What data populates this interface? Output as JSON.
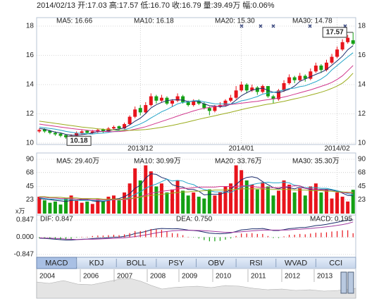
{
  "header": {
    "text": "2014/02/13 开:17.03 高:17.57 低:16.70 收:16.79 量:39.49万 幅:0.06%"
  },
  "chart_data": [
    {
      "type": "candlestick",
      "categories": [
        null,
        null,
        null,
        null,
        null,
        null,
        null,
        null,
        null,
        null,
        null,
        null,
        null,
        null,
        null,
        null,
        null,
        null,
        null,
        "2013/12",
        null,
        null,
        null,
        null,
        null,
        null,
        null,
        null,
        null,
        null,
        null,
        null,
        null,
        null,
        null,
        null,
        null,
        null,
        "2014/01",
        null,
        null,
        null,
        null,
        null,
        null,
        null,
        null,
        null,
        null,
        null,
        null,
        null,
        null,
        null,
        null,
        null,
        "2014/02",
        null,
        null,
        null
      ],
      "open": [
        10.8,
        10.95,
        10.85,
        10.7,
        10.65,
        10.55,
        10.35,
        10.5,
        10.7,
        10.85,
        10.7,
        10.8,
        10.95,
        10.8,
        11.0,
        11.15,
        11.0,
        11.3,
        11.8,
        12.4,
        12.1,
        12.6,
        13.2,
        12.9,
        13.1,
        12.7,
        12.9,
        13.2,
        12.8,
        12.6,
        12.9,
        12.7,
        12.4,
        12.2,
        12.5,
        12.6,
        12.9,
        13.1,
        13.6,
        14.0,
        13.6,
        13.8,
        13.5,
        13.9,
        13.2,
        13.0,
        13.6,
        14.1,
        14.5,
        14.3,
        14.6,
        14.4,
        14.9,
        15.3,
        15.0,
        15.5,
        15.9,
        16.4,
        16.9,
        17.03
      ],
      "high": [
        11.0,
        11.0,
        10.9,
        10.8,
        10.7,
        10.6,
        10.6,
        10.8,
        10.9,
        10.9,
        10.9,
        11.0,
        11.0,
        11.1,
        11.2,
        11.2,
        11.4,
        11.9,
        12.5,
        12.6,
        12.8,
        13.4,
        13.3,
        13.3,
        13.2,
        13.0,
        13.4,
        13.3,
        12.9,
        13.0,
        13.0,
        12.8,
        12.5,
        12.6,
        12.8,
        13.0,
        13.3,
        13.9,
        14.2,
        14.1,
        14.0,
        13.9,
        14.0,
        13.9,
        13.3,
        13.7,
        14.3,
        14.7,
        14.6,
        14.8,
        14.7,
        15.1,
        15.5,
        15.4,
        15.7,
        16.1,
        16.6,
        17.1,
        17.4,
        17.57
      ],
      "low": [
        10.7,
        10.7,
        10.6,
        10.5,
        10.4,
        10.3,
        10.18,
        10.45,
        10.6,
        10.6,
        10.6,
        10.7,
        10.7,
        10.75,
        10.9,
        10.9,
        10.95,
        11.25,
        11.7,
        11.9,
        12.0,
        12.5,
        12.7,
        12.8,
        12.6,
        12.5,
        12.8,
        12.7,
        12.5,
        12.5,
        12.6,
        12.3,
        11.9,
        12.1,
        12.4,
        12.5,
        12.8,
        13.0,
        13.5,
        13.4,
        13.5,
        13.3,
        13.4,
        13.1,
        12.7,
        12.9,
        13.5,
        14.0,
        14.1,
        14.2,
        14.2,
        14.3,
        14.8,
        14.8,
        14.9,
        15.4,
        15.8,
        16.3,
        16.8,
        16.7
      ],
      "close": [
        10.9,
        10.8,
        10.7,
        10.6,
        10.5,
        10.4,
        10.5,
        10.7,
        10.8,
        10.7,
        10.8,
        10.9,
        10.8,
        11.0,
        11.1,
        11.0,
        11.3,
        11.8,
        12.3,
        12.1,
        12.6,
        13.2,
        12.9,
        13.1,
        12.7,
        12.9,
        13.2,
        12.8,
        12.6,
        12.9,
        12.7,
        12.4,
        12.2,
        12.5,
        12.6,
        12.9,
        13.1,
        13.6,
        14.0,
        13.6,
        13.8,
        13.5,
        13.9,
        13.2,
        13.0,
        13.6,
        14.1,
        14.5,
        14.3,
        14.6,
        14.4,
        14.9,
        15.3,
        15.0,
        15.5,
        15.9,
        16.4,
        16.9,
        17.2,
        16.79
      ],
      "up_color": "#e8141c",
      "down_color": "#14a014",
      "low_label": "10.18",
      "high_label": "17.57",
      "series": [
        {
          "name": "MA5: 16.66",
          "color": "#1c2c6c",
          "values": [
            11.0,
            10.95,
            10.85,
            10.75,
            10.7,
            10.6,
            10.54,
            10.54,
            10.58,
            10.62,
            10.7,
            10.78,
            10.8,
            10.84,
            10.92,
            10.96,
            11.04,
            11.24,
            11.5,
            11.7,
            12.02,
            12.4,
            12.62,
            12.78,
            12.9,
            12.96,
            12.96,
            12.94,
            12.84,
            12.88,
            12.84,
            12.68,
            12.56,
            12.54,
            12.48,
            12.52,
            12.66,
            12.94,
            13.24,
            13.44,
            13.62,
            13.7,
            13.76,
            13.6,
            13.48,
            13.44,
            13.56,
            13.68,
            13.9,
            14.22,
            14.38,
            14.54,
            14.7,
            14.84,
            15.02,
            15.32,
            15.62,
            15.94,
            16.38,
            16.66
          ]
        },
        {
          "name": "MA10: 16.18",
          "color": "#22a4c8",
          "values": [
            11.1,
            11.05,
            11.0,
            10.95,
            10.88,
            10.8,
            10.74,
            10.69,
            10.66,
            10.63,
            10.62,
            10.66,
            10.69,
            10.73,
            10.79,
            10.85,
            10.91,
            11.02,
            11.17,
            11.31,
            11.49,
            11.72,
            11.93,
            12.14,
            12.3,
            12.49,
            12.68,
            12.78,
            12.81,
            12.89,
            12.9,
            12.82,
            12.75,
            12.69,
            12.68,
            12.68,
            12.67,
            12.75,
            12.89,
            12.96,
            13.07,
            13.18,
            13.35,
            13.42,
            13.47,
            13.54,
            13.64,
            13.73,
            13.76,
            13.86,
            13.92,
            14.06,
            14.2,
            14.38,
            14.63,
            15.0,
            15.3,
            15.6,
            15.9,
            16.18
          ]
        },
        {
          "name": "MA20: 15.30",
          "color": "#d0358c",
          "values": [
            11.3,
            11.25,
            11.2,
            11.15,
            11.1,
            11.05,
            11.0,
            10.96,
            10.92,
            10.88,
            10.85,
            10.82,
            10.8,
            10.78,
            10.78,
            10.79,
            10.82,
            10.87,
            10.95,
            11.03,
            11.12,
            11.24,
            11.36,
            11.48,
            11.6,
            11.72,
            11.85,
            11.97,
            12.08,
            12.2,
            12.3,
            12.38,
            12.44,
            12.5,
            12.55,
            12.6,
            12.64,
            12.68,
            12.73,
            12.77,
            12.82,
            12.86,
            12.92,
            12.97,
            13.02,
            13.08,
            13.15,
            13.24,
            13.34,
            13.44,
            13.54,
            13.64,
            13.76,
            13.88,
            14.0,
            14.15,
            14.35,
            14.6,
            14.95,
            15.3
          ]
        },
        {
          "name": "MA30: 14.78",
          "color": "#9aac1c",
          "values": [
            11.5,
            11.45,
            11.4,
            11.35,
            11.3,
            11.25,
            11.2,
            11.15,
            11.1,
            11.06,
            11.02,
            10.98,
            10.95,
            10.92,
            10.9,
            10.88,
            10.87,
            10.87,
            10.88,
            10.9,
            10.93,
            10.97,
            11.02,
            11.08,
            11.14,
            11.21,
            11.29,
            11.37,
            11.45,
            11.54,
            11.63,
            11.71,
            11.79,
            11.87,
            11.95,
            12.03,
            12.11,
            12.2,
            12.29,
            12.37,
            12.45,
            12.52,
            12.6,
            12.66,
            12.72,
            12.79,
            12.86,
            12.94,
            13.02,
            13.1,
            13.19,
            13.28,
            13.38,
            13.48,
            13.6,
            13.74,
            13.9,
            14.1,
            14.4,
            14.78
          ]
        }
      ],
      "ylim": [
        10,
        18
      ],
      "yticks": [
        10,
        12,
        14,
        16,
        18
      ],
      "tick_color": "#d00000",
      "grid": true
    },
    {
      "type": "bar",
      "values": [
        28,
        22,
        18,
        20,
        15,
        25,
        30,
        22,
        18,
        20,
        16,
        24,
        20,
        28,
        30,
        22,
        35,
        50,
        75,
        55,
        80,
        70,
        45,
        50,
        35,
        40,
        55,
        38,
        30,
        35,
        28,
        25,
        40,
        30,
        35,
        45,
        50,
        80,
        72,
        55,
        48,
        40,
        52,
        45,
        30,
        38,
        55,
        48,
        35,
        42,
        30,
        45,
        50,
        35,
        40,
        25,
        35,
        28,
        20,
        39.49
      ],
      "series": [
        {
          "name": "MA5: 29.40万",
          "color": "#1c2c6c",
          "values": [
            25,
            24,
            23,
            22,
            21,
            20,
            22,
            22,
            23,
            23,
            21,
            20,
            20,
            22,
            24,
            25,
            28,
            33,
            42,
            47,
            59,
            66,
            65,
            60,
            57,
            48,
            45,
            44,
            40,
            40,
            37,
            31,
            32,
            32,
            32,
            35,
            40,
            48,
            56,
            60,
            61,
            59,
            53,
            48,
            43,
            41,
            44,
            43,
            41,
            44,
            42,
            40,
            40,
            40,
            40,
            39,
            37,
            34,
            30,
            29.4
          ]
        },
        {
          "name": "MA10: 30.99万",
          "color": "#22a4c8",
          "values": [
            26,
            25,
            24,
            24,
            23,
            23,
            23,
            22,
            22,
            22,
            22,
            22,
            21,
            22,
            23,
            23,
            24,
            27,
            32,
            36,
            42,
            46,
            49,
            53,
            57,
            54,
            55,
            54,
            50,
            48,
            43,
            40,
            38,
            36,
            36,
            36,
            35,
            40,
            44,
            46,
            48,
            50,
            51,
            52,
            51,
            51,
            52,
            51,
            47,
            46,
            43,
            43,
            43,
            42,
            42,
            40,
            38,
            36,
            33,
            30.99
          ]
        },
        {
          "name": "MA20: 33.76万",
          "color": "#d0358c",
          "values": [
            27,
            27,
            26,
            26,
            25,
            25,
            25,
            24,
            24,
            24,
            23,
            23,
            23,
            23,
            23,
            23,
            23,
            24,
            26,
            28,
            31,
            34,
            35,
            37,
            38,
            39,
            41,
            42,
            42,
            43,
            44,
            44,
            44,
            44,
            45,
            45,
            45,
            45,
            46,
            46,
            45,
            44,
            43,
            43,
            43,
            43,
            44,
            45,
            46,
            46,
            42,
            41,
            40,
            39,
            38,
            37,
            36,
            35,
            34.5,
            33.76
          ]
        },
        {
          "name": "MA30: 35.30万",
          "color": "#9aac1c",
          "values": [
            28,
            28,
            27,
            27,
            27,
            26,
            26,
            26,
            25,
            25,
            25,
            25,
            24,
            24,
            24,
            24,
            24,
            25,
            26,
            27,
            29,
            30,
            31,
            32,
            33,
            34,
            35,
            36,
            36,
            37,
            37,
            38,
            38,
            39,
            39,
            39,
            40,
            40,
            41,
            41,
            41,
            41,
            41,
            40,
            40,
            40,
            40,
            40,
            39,
            39,
            39,
            38,
            38,
            38,
            37,
            37,
            36,
            36,
            35.5,
            35.3
          ]
        }
      ],
      "y_unit": "x万",
      "ylim": [
        0,
        90
      ],
      "yticks": [
        23,
        45,
        68,
        90
      ],
      "tick_color": "#333333",
      "grid": true
    },
    {
      "type": "macd",
      "series": [
        {
          "name": "DIF: 0.847",
          "color": "#1c2c6c",
          "values": [
            -0.05,
            -0.06,
            -0.08,
            -0.1,
            -0.12,
            -0.14,
            -0.14,
            -0.12,
            -0.1,
            -0.09,
            -0.07,
            -0.05,
            -0.04,
            -0.02,
            0.0,
            0.01,
            0.04,
            0.1,
            0.18,
            0.22,
            0.28,
            0.36,
            0.4,
            0.43,
            0.42,
            0.41,
            0.42,
            0.39,
            0.35,
            0.33,
            0.3,
            0.25,
            0.2,
            0.18,
            0.17,
            0.18,
            0.21,
            0.28,
            0.36,
            0.38,
            0.41,
            0.41,
            0.43,
            0.38,
            0.33,
            0.33,
            0.37,
            0.42,
            0.44,
            0.47,
            0.48,
            0.52,
            0.57,
            0.59,
            0.63,
            0.68,
            0.73,
            0.79,
            0.84,
            0.847
          ]
        },
        {
          "name": "DEA: 0.750",
          "color": "#a03ca0",
          "values": [
            -0.03,
            -0.04,
            -0.05,
            -0.06,
            -0.07,
            -0.09,
            -0.1,
            -0.11,
            -0.11,
            -0.1,
            -0.1,
            -0.09,
            -0.08,
            -0.07,
            -0.06,
            -0.04,
            -0.03,
            0.0,
            0.03,
            0.07,
            0.11,
            0.16,
            0.21,
            0.25,
            0.28,
            0.31,
            0.33,
            0.34,
            0.34,
            0.34,
            0.33,
            0.32,
            0.3,
            0.28,
            0.26,
            0.24,
            0.24,
            0.25,
            0.27,
            0.29,
            0.31,
            0.33,
            0.35,
            0.35,
            0.35,
            0.35,
            0.35,
            0.36,
            0.38,
            0.39,
            0.41,
            0.43,
            0.46,
            0.48,
            0.51,
            0.54,
            0.58,
            0.62,
            0.67,
            0.75
          ]
        },
        {
          "name": "MACD: 0.195",
          "color": "#e8141c",
          "negative_color": "#14a014",
          "values": [
            -0.04,
            -0.04,
            -0.06,
            -0.08,
            -0.1,
            -0.1,
            -0.08,
            -0.02,
            0.02,
            0.02,
            0.06,
            0.08,
            0.08,
            0.1,
            0.12,
            0.1,
            0.14,
            0.2,
            0.3,
            0.3,
            0.34,
            0.4,
            0.38,
            0.36,
            0.28,
            0.2,
            0.18,
            0.1,
            0.02,
            -0.02,
            -0.06,
            -0.14,
            -0.2,
            -0.2,
            -0.18,
            -0.12,
            -0.06,
            0.06,
            0.18,
            0.18,
            0.2,
            0.16,
            0.16,
            0.06,
            -0.04,
            -0.04,
            0.04,
            0.12,
            0.12,
            0.16,
            0.14,
            0.18,
            0.22,
            0.22,
            0.24,
            0.28,
            0.3,
            0.34,
            0.34,
            0.195
          ]
        }
      ],
      "ylim": [
        -0.847,
        0.847
      ],
      "yticks": [
        -0.847,
        {
          "value": 0,
          "label": "0.000"
        },
        0.847
      ],
      "tick_color": "#3366cc",
      "grid": true
    }
  ],
  "tabs": [
    "MACD",
    "KDJ",
    "BOLL",
    "PSY",
    "OBV",
    "RSI",
    "WVAD",
    "CCI"
  ],
  "active_tab": 0,
  "timeline": {
    "years": [
      "2004",
      "2006",
      "2007",
      "2008",
      "2009",
      "2010",
      "2011",
      "2012",
      "2013"
    ]
  }
}
